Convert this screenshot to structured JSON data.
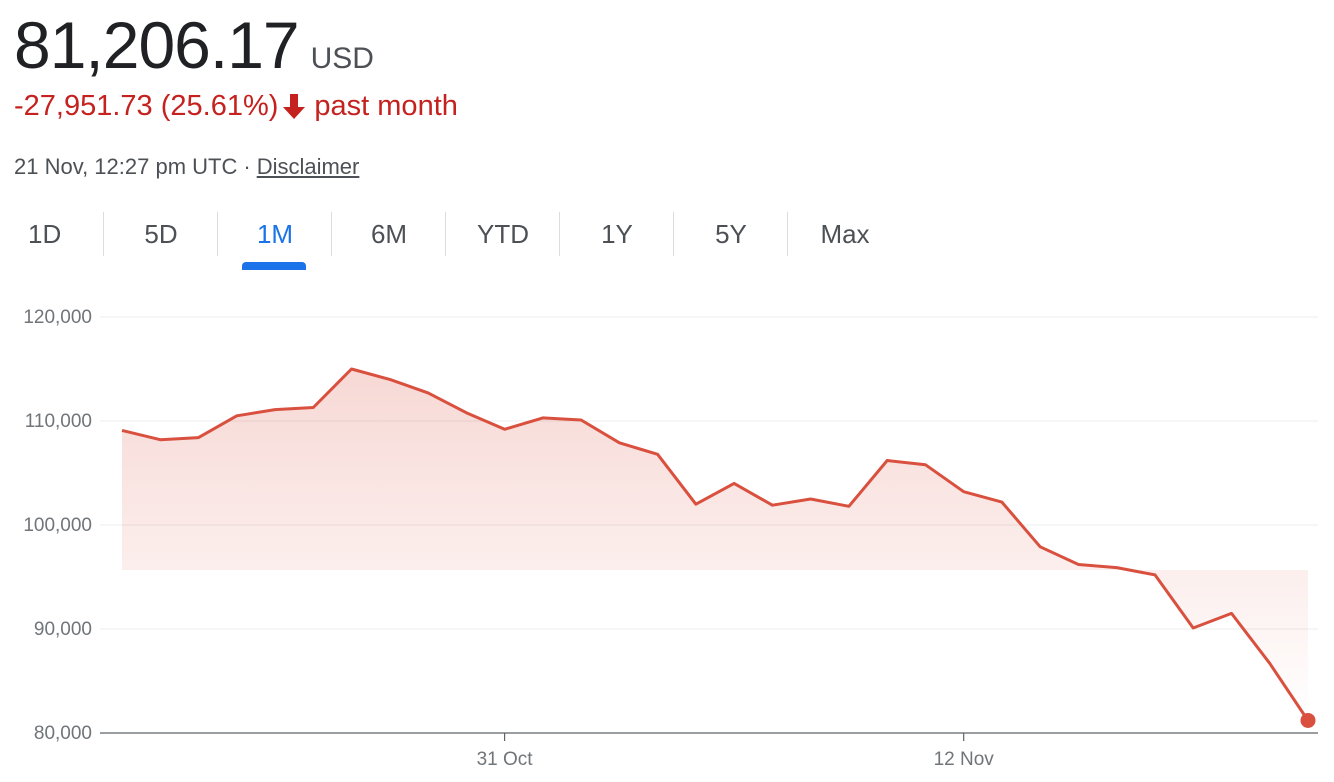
{
  "header": {
    "price": "81,206.17",
    "currency": "USD",
    "change": "-27,951.73 (25.61%)",
    "period": "past month",
    "timestamp": "21 Nov, 12:27 pm UTC",
    "separator": "·",
    "disclaimer": "Disclaimer"
  },
  "tabs": [
    {
      "label": "1D",
      "active": false
    },
    {
      "label": "5D",
      "active": false
    },
    {
      "label": "1M",
      "active": true
    },
    {
      "label": "6M",
      "active": false
    },
    {
      "label": "YTD",
      "active": false
    },
    {
      "label": "1Y",
      "active": false
    },
    {
      "label": "5Y",
      "active": false
    },
    {
      "label": "Max",
      "active": false
    }
  ],
  "colors": {
    "line": "#d9503f",
    "negative": "#c5221f",
    "active_tab": "#1a73e8"
  },
  "chart_data": {
    "type": "area",
    "x_labels": [
      {
        "label": "31 Oct",
        "index": 10
      },
      {
        "label": "12 Nov",
        "index": 22
      }
    ],
    "ylim": [
      80000,
      120000
    ],
    "y_ticks": [
      "120,000",
      "110,000",
      "100,000",
      "90,000",
      "80,000"
    ],
    "y_tick_values": [
      120000,
      110000,
      100000,
      90000,
      80000
    ],
    "grid": true,
    "series": [
      {
        "values": [
          109100,
          108200,
          108400,
          110500,
          111100,
          111300,
          115000,
          114000,
          112700,
          110800,
          109200,
          110300,
          110100,
          107900,
          106800,
          102000,
          104000,
          101900,
          102500,
          101800,
          106200,
          105800,
          103200,
          102200,
          97900,
          96200,
          95900,
          95200,
          90100,
          91500,
          86700,
          81206.17
        ]
      }
    ]
  }
}
